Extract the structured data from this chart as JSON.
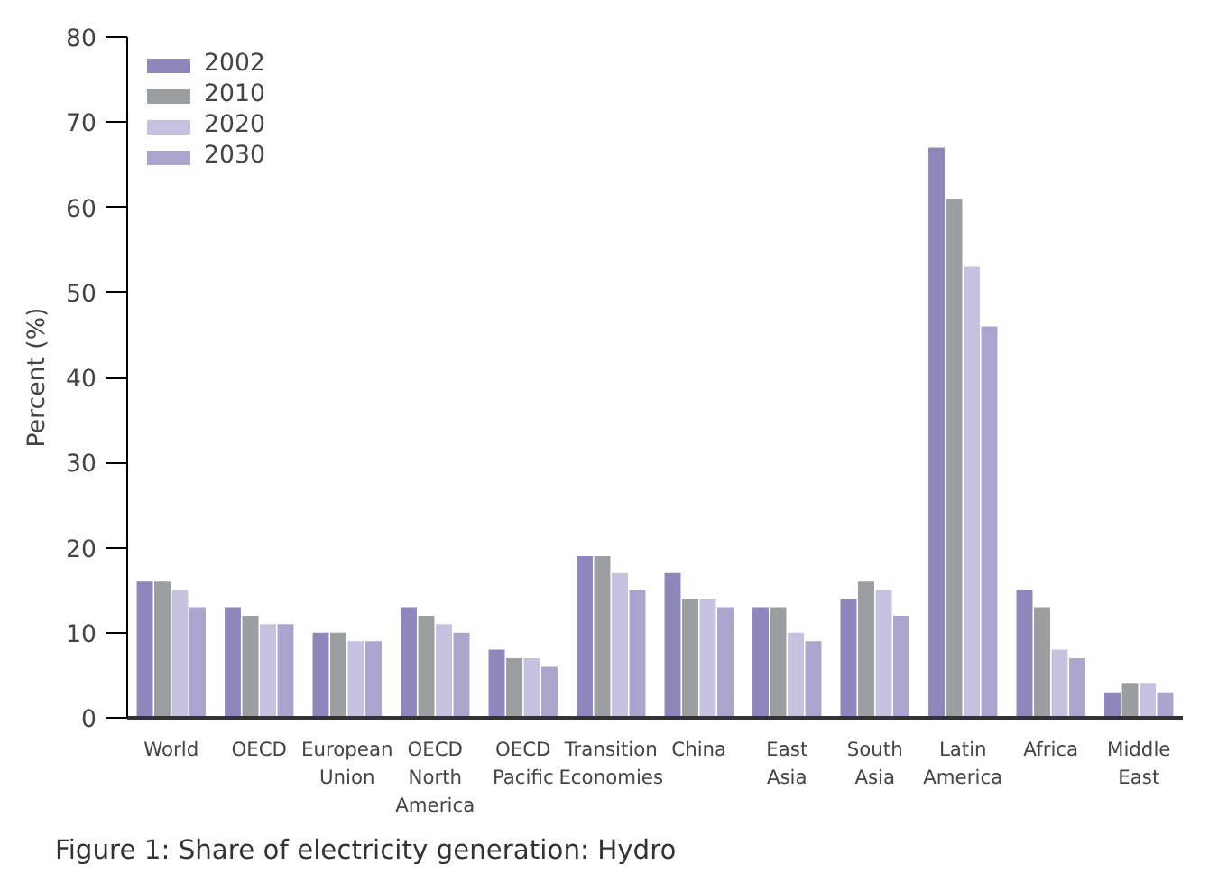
{
  "chart_data": {
    "type": "bar",
    "title": "Figure 1: Share of electricity generation: Hydro",
    "ylabel": "Percent (%)",
    "categories": [
      "World",
      "OECD",
      "European\nUnion",
      "OECD\nNorth\nAmerica",
      "OECD\nPacific",
      "Transition\nEconomies",
      "China",
      "East\nAsia",
      "South\nAsia",
      "Latin\nAmerica",
      "Africa",
      "Middle\nEast"
    ],
    "series": [
      {
        "name": "2002",
        "color": "#8f87bb",
        "values": [
          16,
          13,
          10,
          13,
          8,
          19,
          17,
          13,
          14,
          67,
          15,
          3
        ]
      },
      {
        "name": "2010",
        "color": "#9a9ea1",
        "values": [
          16,
          12,
          10,
          12,
          7,
          19,
          14,
          13,
          16,
          61,
          13,
          4
        ]
      },
      {
        "name": "2020",
        "color": "#c5c1df",
        "values": [
          15,
          11,
          9,
          11,
          7,
          17,
          14,
          10,
          15,
          53,
          8,
          4
        ]
      },
      {
        "name": "2030",
        "color": "#aba4cc",
        "values": [
          13,
          11,
          9,
          10,
          6,
          15,
          13,
          9,
          12,
          46,
          7,
          3
        ]
      }
    ],
    "ylim": [
      0,
      80
    ],
    "yticks": [
      0,
      10,
      20,
      30,
      40,
      50,
      60,
      70,
      80
    ],
    "legend": "top left",
    "grid": false
  }
}
